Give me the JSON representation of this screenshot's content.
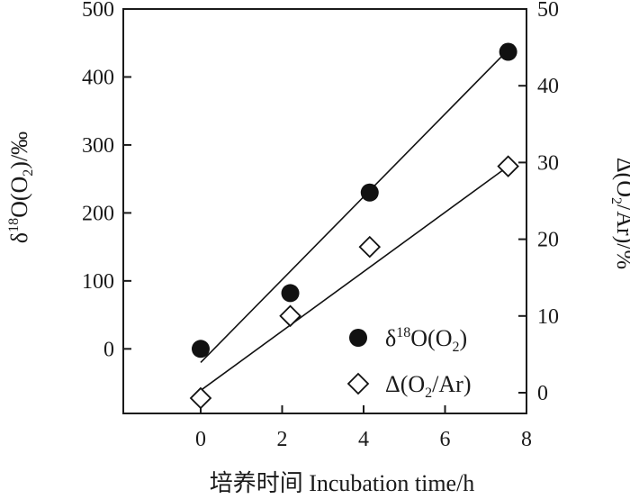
{
  "chart_data": {
    "type": "scatter",
    "xlabel": "培养时间 Incubation time/h",
    "x_ticks": [
      0,
      2,
      4,
      6,
      8
    ],
    "xlim": [
      -1.9,
      8
    ],
    "left_axis": {
      "label_parts": [
        "δ",
        "18",
        "O(O",
        "2",
        ")/‰"
      ],
      "ylim": [
        -95,
        500
      ],
      "ticks": [
        0,
        100,
        200,
        300,
        400,
        500
      ]
    },
    "right_axis": {
      "label_parts": [
        "Δ(O",
        "2",
        "/Ar)/%"
      ],
      "ylim": [
        -2.7,
        50
      ],
      "ticks": [
        0,
        10,
        20,
        30,
        40,
        50
      ]
    },
    "series": [
      {
        "name_parts": [
          "δ",
          "18",
          "O(O",
          "2",
          ")"
        ],
        "axis": "left",
        "marker": "filled-circle",
        "color": "#111111",
        "x": [
          0,
          2.2,
          4.15,
          7.55
        ],
        "y": [
          0,
          82,
          230,
          437
        ],
        "fit": {
          "x": [
            0,
            7.55
          ],
          "y": [
            -20,
            440
          ]
        }
      },
      {
        "name_parts": [
          "Δ(O",
          "2",
          "/Ar)"
        ],
        "axis": "right",
        "marker": "open-diamond",
        "color": "#111111",
        "x": [
          0,
          2.2,
          4.15,
          7.55
        ],
        "y": [
          -0.7,
          10,
          19,
          29.5
        ],
        "fit": {
          "x": [
            0,
            7.55
          ],
          "y": [
            0.3,
            29.5
          ]
        }
      }
    ],
    "legend_position": "lower-right",
    "grid": false
  }
}
